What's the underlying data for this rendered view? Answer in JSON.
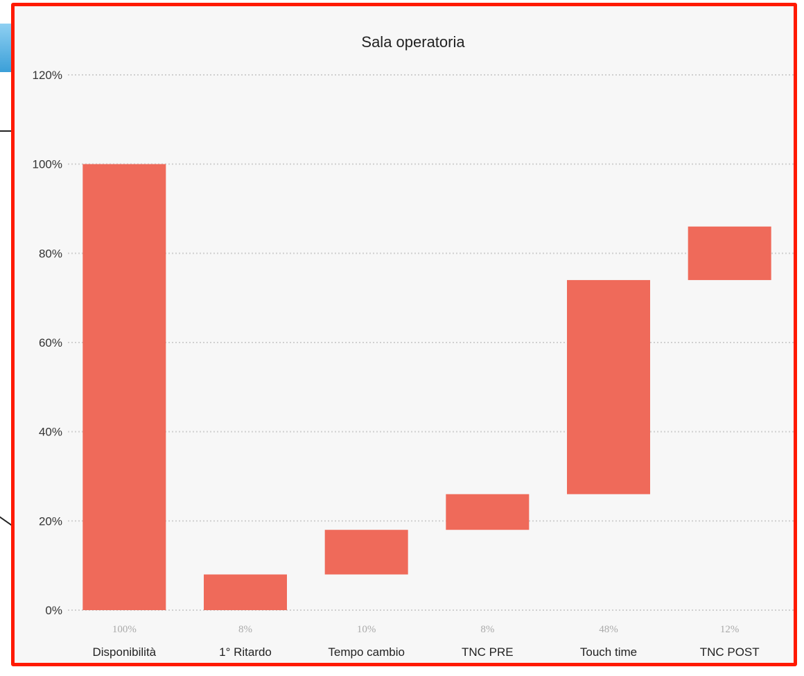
{
  "chart_data": {
    "type": "bar",
    "subtype": "waterfall",
    "title": "Sala operatoria",
    "xlabel": "",
    "ylabel": "",
    "ylim": [
      0,
      120
    ],
    "yticks": [
      "0%",
      "20%",
      "40%",
      "60%",
      "80%",
      "100%",
      "120%"
    ],
    "grid": true,
    "legend": "none",
    "bar_color": "#ef6a5a",
    "categories": [
      "Disponibilità",
      "1° Ritardo",
      "Tempo cambio",
      "TNC PRE",
      "Touch time",
      "TNC POST"
    ],
    "data_labels": [
      "100%",
      "8%",
      "10%",
      "8%",
      "48%",
      "12%"
    ],
    "bars": [
      {
        "low": 0,
        "high": 100
      },
      {
        "low": 0,
        "high": 8
      },
      {
        "low": 8,
        "high": 18
      },
      {
        "low": 18,
        "high": 26
      },
      {
        "low": 26,
        "high": 74
      },
      {
        "low": 74,
        "high": 86
      }
    ]
  }
}
